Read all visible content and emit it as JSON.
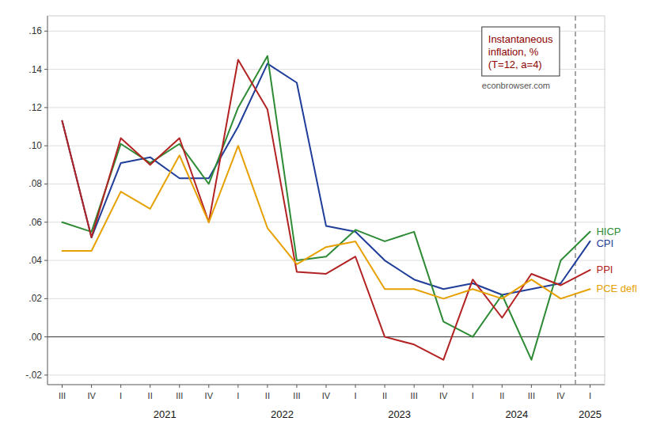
{
  "chart_data": {
    "type": "line",
    "categories": [
      "III",
      "IV",
      "I",
      "II",
      "III",
      "IV",
      "I",
      "II",
      "III",
      "IV",
      "I",
      "II",
      "III",
      "IV",
      "I",
      "II",
      "III",
      "IV",
      "I"
    ],
    "category_groups": [
      {
        "label": "2021",
        "from": 2,
        "to": 5
      },
      {
        "label": "2022",
        "from": 6,
        "to": 9
      },
      {
        "label": "2023",
        "from": 10,
        "to": 13
      },
      {
        "label": "2024",
        "from": 14,
        "to": 17
      },
      {
        "label": "2025",
        "from": 18,
        "to": 18
      }
    ],
    "series": [
      {
        "name": "CPI",
        "color": "#1f3d99",
        "values": [
          0.113,
          0.052,
          0.091,
          0.094,
          0.083,
          0.083,
          0.11,
          0.143,
          0.133,
          0.058,
          0.055,
          0.04,
          0.03,
          0.025,
          0.028,
          0.022,
          0.025,
          0.028,
          0.05
        ]
      },
      {
        "name": "HICP",
        "color": "#2e8b35",
        "values": [
          0.06,
          0.055,
          0.101,
          0.091,
          0.101,
          0.08,
          0.12,
          0.147,
          0.04,
          0.042,
          0.056,
          0.05,
          0.055,
          0.008,
          0.0,
          0.022,
          -0.012,
          0.04,
          0.055
        ]
      },
      {
        "name": "PPI",
        "color": "#b22222",
        "values": [
          0.113,
          0.052,
          0.104,
          0.09,
          0.104,
          0.06,
          0.145,
          0.119,
          0.034,
          0.033,
          0.042,
          0.0,
          -0.004,
          -0.012,
          0.03,
          0.01,
          0.033,
          0.027,
          0.035
        ]
      },
      {
        "name": "PCE defl",
        "color": "#e6a000",
        "values": [
          0.045,
          0.045,
          0.076,
          0.067,
          0.095,
          0.06,
          0.1,
          0.057,
          0.038,
          0.047,
          0.05,
          0.025,
          0.025,
          0.02,
          0.025,
          0.02,
          0.03,
          0.02,
          0.025
        ]
      }
    ],
    "ylim": [
      -0.025,
      0.168
    ],
    "yticks": [
      {
        "value": -0.02,
        "label": "-.02"
      },
      {
        "value": 0.0,
        "label": ".00"
      },
      {
        "value": 0.02,
        "label": ".02"
      },
      {
        "value": 0.04,
        "label": ".04"
      },
      {
        "value": 0.06,
        "label": ".06"
      },
      {
        "value": 0.08,
        "label": ".08"
      },
      {
        "value": 0.1,
        "label": ".10"
      },
      {
        "value": 0.12,
        "label": ".12"
      },
      {
        "value": 0.14,
        "label": ".14"
      },
      {
        "value": 0.16,
        "label": ".16"
      }
    ],
    "grid": true,
    "annotation": "Instantaneous\ninflation, %\n(T=12, a=4)",
    "source": "econbrowser.com"
  }
}
